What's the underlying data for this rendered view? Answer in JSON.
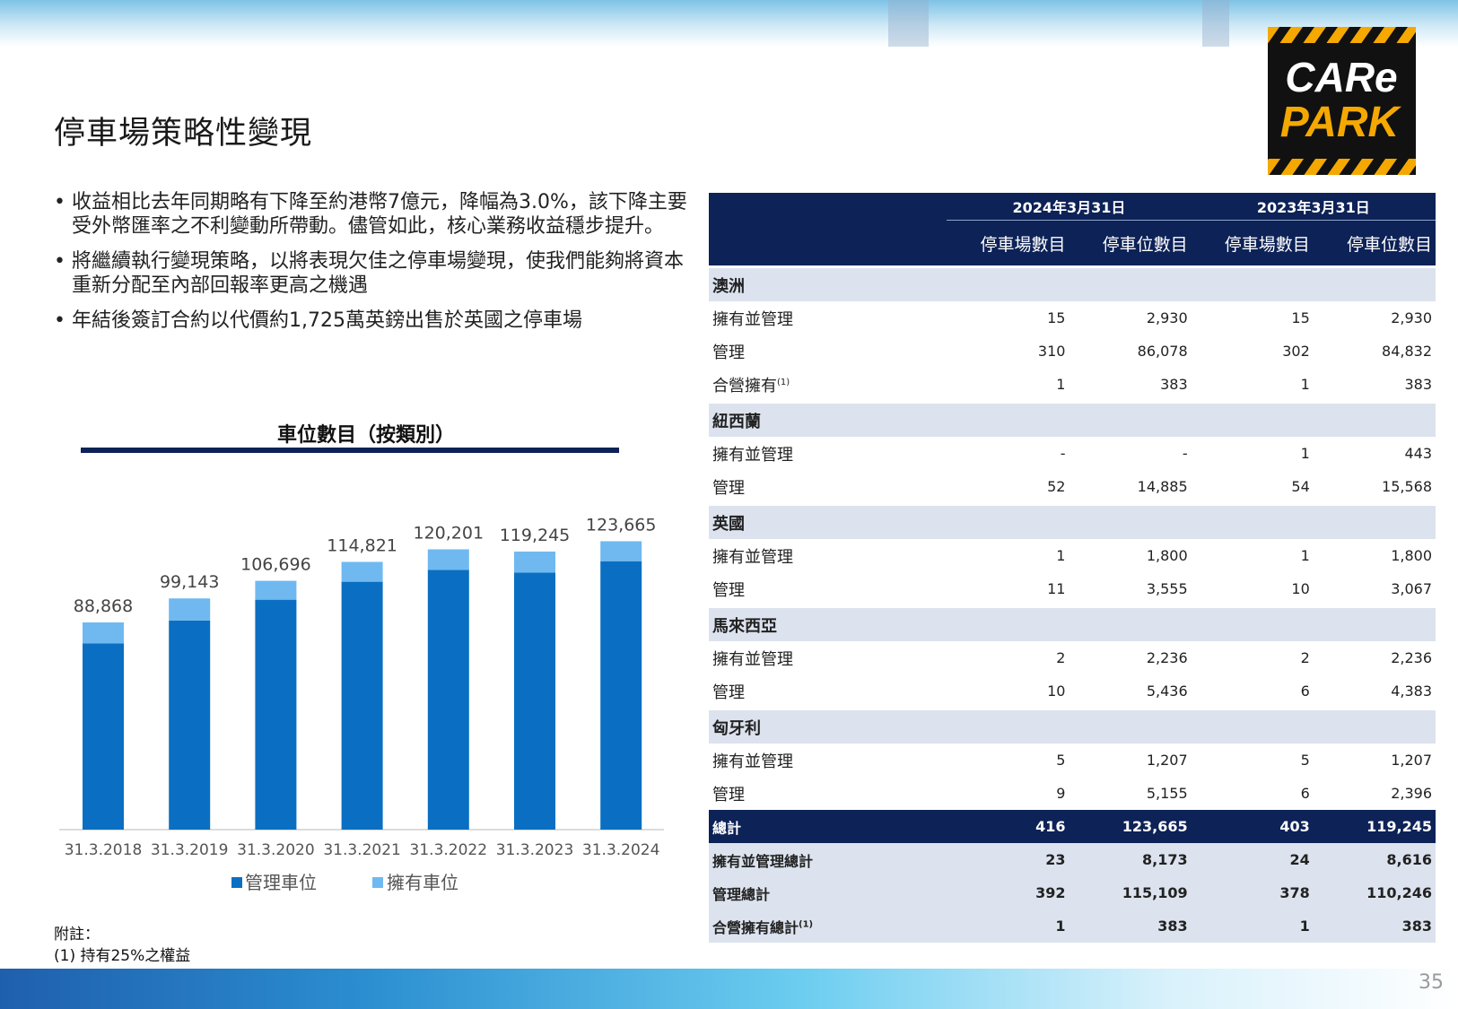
{
  "page_title": "停車場策略性變現",
  "page_number": "35",
  "logo": {
    "line1": "CARe",
    "line2": "PARK"
  },
  "bullets": [
    "收益相比去年同期略有下降至約港幣7億元，降幅為3.0%，該下降主要受外幣匯率之不利變動所帶動。儘管如此，核心業務收益穩步提升。",
    "將繼續執行變現策略，以將表現欠佳之停車場變現，使我們能夠將資本重新分配至內部回報率更高之機遇",
    "年結後簽訂合約以代價約1,725萬英鎊出售於英國之停車場"
  ],
  "footnote": {
    "label": "附註：",
    "text": "(1)  持有25%之權益"
  },
  "colors": {
    "managed": "#0a6fc2",
    "owned": "#6fb9f0",
    "navy": "#0d2257",
    "band": "#dce3ee"
  },
  "chart_data": {
    "type": "bar",
    "stacked": true,
    "title": "車位數目（按類別）",
    "categories": [
      "31.3.2018",
      "31.3.2019",
      "31.3.2020",
      "31.3.2021",
      "31.3.2022",
      "31.3.2023",
      "31.3.2024"
    ],
    "series": [
      {
        "name": "管理車位",
        "values": [
          79900,
          89700,
          98600,
          106300,
          111400,
          110246,
          115109
        ]
      },
      {
        "name": "擁有車位",
        "values": [
          8968,
          9443,
          8096,
          8521,
          8801,
          8999,
          8556
        ]
      }
    ],
    "totals": [
      "88,868",
      "99,143",
      "106,696",
      "114,821",
      "120,201",
      "119,245",
      "123,665"
    ],
    "legend_position": "bottom",
    "grid": false
  },
  "table": {
    "date_headers": [
      "2024年3月31日",
      "2023年3月31日"
    ],
    "col_headers": [
      "停車場數目",
      "停車位數目",
      "停車場數目",
      "停車位數目"
    ],
    "regions": [
      {
        "name": "澳洲",
        "rows": [
          {
            "label": "擁有並管理",
            "sup": "",
            "values": [
              "15",
              "2,930",
              "15",
              "2,930"
            ]
          },
          {
            "label": "管理",
            "sup": "",
            "values": [
              "310",
              "86,078",
              "302",
              "84,832"
            ]
          },
          {
            "label": "合營擁有",
            "sup": "(1)",
            "values": [
              "1",
              "383",
              "1",
              "383"
            ]
          }
        ]
      },
      {
        "name": "紐西蘭",
        "rows": [
          {
            "label": "擁有並管理",
            "sup": "",
            "values": [
              "-",
              "-",
              "1",
              "443"
            ]
          },
          {
            "label": "管理",
            "sup": "",
            "values": [
              "52",
              "14,885",
              "54",
              "15,568"
            ]
          }
        ]
      },
      {
        "name": "英國",
        "rows": [
          {
            "label": "擁有並管理",
            "sup": "",
            "values": [
              "1",
              "1,800",
              "1",
              "1,800"
            ]
          },
          {
            "label": "管理",
            "sup": "",
            "values": [
              "11",
              "3,555",
              "10",
              "3,067"
            ]
          }
        ]
      },
      {
        "name": "馬來西亞",
        "rows": [
          {
            "label": "擁有並管理",
            "sup": "",
            "values": [
              "2",
              "2,236",
              "2",
              "2,236"
            ]
          },
          {
            "label": "管理",
            "sup": "",
            "values": [
              "10",
              "5,436",
              "6",
              "4,383"
            ]
          }
        ]
      },
      {
        "name": "匈牙利",
        "rows": [
          {
            "label": "擁有並管理",
            "sup": "",
            "values": [
              "5",
              "1,207",
              "5",
              "1,207"
            ]
          },
          {
            "label": "管理",
            "sup": "",
            "values": [
              "9",
              "5,155",
              "6",
              "2,396"
            ]
          }
        ]
      }
    ],
    "total": {
      "label": "總計",
      "values": [
        "416",
        "123,665",
        "403",
        "119,245"
      ]
    },
    "subtotals": [
      {
        "label": "擁有並管理總計",
        "sup": "",
        "values": [
          "23",
          "8,173",
          "24",
          "8,616"
        ]
      },
      {
        "label": "管理總計",
        "sup": "",
        "values": [
          "392",
          "115,109",
          "378",
          "110,246"
        ]
      },
      {
        "label": "合營擁有總計",
        "sup": "(1)",
        "values": [
          "1",
          "383",
          "1",
          "383"
        ]
      }
    ]
  }
}
